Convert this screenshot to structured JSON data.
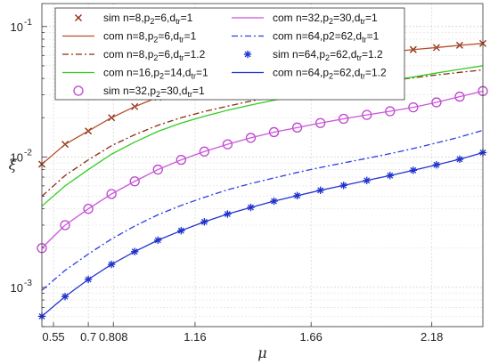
{
  "chart_data": {
    "type": "line",
    "xlabel": "μ",
    "ylabel": "ξ",
    "y_scale": "log",
    "xlim": [
      0.5,
      2.4
    ],
    "ylim": [
      0.0005,
      0.15
    ],
    "grid": true,
    "legend_position": "top",
    "legend_columns": 2,
    "x_ticks": [
      {
        "value": 0.55,
        "label": "0.55"
      },
      {
        "value": 0.7,
        "label": "0.7"
      },
      {
        "value": 0.808,
        "label": "0.808"
      },
      {
        "value": 1.16,
        "label": "1.16"
      },
      {
        "value": 1.66,
        "label": "1.66"
      },
      {
        "value": 2.18,
        "label": "2.18"
      }
    ],
    "y_ticks": [
      {
        "value": 0.001,
        "base": "10",
        "exp": "-3"
      },
      {
        "value": 0.01,
        "base": "10",
        "exp": "-2"
      },
      {
        "value": 0.1,
        "base": "10",
        "exp": "-1"
      }
    ],
    "series": [
      {
        "id": "sim-8",
        "legend_text": "sim n=8,p",
        "legend_parts": [
          [
            "sim n=8,p",
            ""
          ],
          [
            "2",
            "sub"
          ],
          [
            "=6,d",
            ""
          ],
          [
            "tr",
            "sub"
          ],
          [
            "=1",
            ""
          ]
        ],
        "kind": "markers",
        "marker": "x",
        "color": "#8b2c12",
        "x": [
          0.5,
          0.6,
          0.7,
          0.8,
          0.9,
          1.0,
          1.1,
          1.2,
          1.3,
          1.4,
          1.5,
          1.6,
          1.7,
          1.8,
          1.9,
          2.0,
          2.1,
          2.2,
          2.3,
          2.4
        ],
        "y": [
          0.0088,
          0.0125,
          0.0158,
          0.02,
          0.0243,
          0.0287,
          0.033,
          0.0373,
          0.0413,
          0.0448,
          0.0485,
          0.052,
          0.055,
          0.058,
          0.061,
          0.064,
          0.0665,
          0.069,
          0.0718,
          0.0742
        ]
      },
      {
        "id": "com-8-1",
        "legend_parts": [
          [
            "com n=8,p",
            ""
          ],
          [
            "2",
            "sub"
          ],
          [
            "=6,d",
            ""
          ],
          [
            "tr",
            "sub"
          ],
          [
            "=1",
            ""
          ]
        ],
        "kind": "line",
        "dash": "",
        "color": "#b4502c",
        "x": [
          0.5,
          0.6,
          0.7,
          0.8,
          0.9,
          1.0,
          1.1,
          1.2,
          1.3,
          1.4,
          1.5,
          1.6,
          1.7,
          1.8,
          1.9,
          2.0,
          2.1,
          2.2,
          2.3,
          2.4
        ],
        "y": [
          0.0088,
          0.0125,
          0.0158,
          0.02,
          0.0243,
          0.0287,
          0.033,
          0.0373,
          0.0413,
          0.0448,
          0.0485,
          0.052,
          0.055,
          0.058,
          0.061,
          0.064,
          0.0665,
          0.069,
          0.0718,
          0.0742
        ]
      },
      {
        "id": "com-8-1.2",
        "legend_parts": [
          [
            "com n=8,p",
            ""
          ],
          [
            "2",
            "sub"
          ],
          [
            "=6,d",
            ""
          ],
          [
            "tr",
            "sub"
          ],
          [
            "=1.2",
            ""
          ]
        ],
        "kind": "line",
        "dash": "7,3,2,3",
        "color": "#8b2c12",
        "x": [
          0.5,
          0.6,
          0.7,
          0.8,
          0.9,
          1.0,
          1.1,
          1.2,
          1.3,
          1.4,
          1.5,
          1.6,
          1.7,
          1.8,
          1.9,
          2.0,
          2.1,
          2.2,
          2.3,
          2.4
        ],
        "y": [
          0.005,
          0.0072,
          0.0095,
          0.0122,
          0.0148,
          0.0175,
          0.02,
          0.0223,
          0.0245,
          0.0268,
          0.029,
          0.031,
          0.033,
          0.035,
          0.0368,
          0.0385,
          0.0405,
          0.0425,
          0.0445,
          0.0465
        ]
      },
      {
        "id": "com-16",
        "legend_parts": [
          [
            "com n=16,p",
            ""
          ],
          [
            "2",
            "sub"
          ],
          [
            "=14,d",
            ""
          ],
          [
            "tr",
            "sub"
          ],
          [
            "=1",
            ""
          ]
        ],
        "kind": "line",
        "dash": "",
        "color": "#33cc22",
        "x": [
          0.5,
          0.6,
          0.7,
          0.8,
          0.9,
          1.0,
          1.1,
          1.2,
          1.3,
          1.4,
          1.5,
          1.6,
          1.7,
          1.8,
          1.9,
          2.0,
          2.1,
          2.2,
          2.3,
          2.4
        ],
        "y": [
          0.0042,
          0.006,
          0.008,
          0.0105,
          0.013,
          0.0157,
          0.0182,
          0.0205,
          0.0228,
          0.025,
          0.0272,
          0.0295,
          0.0318,
          0.034,
          0.0362,
          0.0385,
          0.041,
          0.044,
          0.047,
          0.05
        ]
      },
      {
        "id": "sim-32",
        "legend_parts": [
          [
            "sim n=32,p",
            ""
          ],
          [
            "2",
            "sub"
          ],
          [
            "=30,d",
            ""
          ],
          [
            "tr",
            "sub"
          ],
          [
            "=1",
            ""
          ]
        ],
        "kind": "markers",
        "marker": "o",
        "color": "#bb44cc",
        "x": [
          0.5,
          0.6,
          0.7,
          0.8,
          0.9,
          1.0,
          1.1,
          1.2,
          1.3,
          1.4,
          1.5,
          1.6,
          1.7,
          1.8,
          1.9,
          2.0,
          2.1,
          2.2,
          2.3,
          2.4
        ],
        "y": [
          0.002,
          0.003,
          0.004,
          0.0052,
          0.0065,
          0.008,
          0.0095,
          0.011,
          0.0125,
          0.014,
          0.0155,
          0.0168,
          0.0182,
          0.0196,
          0.021,
          0.0224,
          0.024,
          0.0262,
          0.029,
          0.032
        ]
      },
      {
        "id": "com-32",
        "legend_parts": [
          [
            "com n=32,p",
            ""
          ],
          [
            "2",
            "sub"
          ],
          [
            "=30,d",
            ""
          ],
          [
            "tr",
            "sub"
          ],
          [
            "=1",
            ""
          ]
        ],
        "kind": "line",
        "dash": "",
        "color": "#cc55dd",
        "x": [
          0.5,
          0.6,
          0.7,
          0.8,
          0.9,
          1.0,
          1.1,
          1.2,
          1.3,
          1.4,
          1.5,
          1.6,
          1.7,
          1.8,
          1.9,
          2.0,
          2.1,
          2.2,
          2.3,
          2.4
        ],
        "y": [
          0.002,
          0.003,
          0.004,
          0.0052,
          0.0065,
          0.008,
          0.0095,
          0.011,
          0.0125,
          0.014,
          0.0155,
          0.0168,
          0.0182,
          0.0196,
          0.021,
          0.0224,
          0.024,
          0.0262,
          0.029,
          0.032
        ]
      },
      {
        "id": "com-64-1",
        "legend_parts": [
          [
            "com n=64,p2=62,d",
            ""
          ],
          [
            "tr",
            "sub"
          ],
          [
            "=1",
            ""
          ]
        ],
        "kind": "line",
        "dash": "7,3,2,3",
        "color": "#2a3fe0",
        "x": [
          0.5,
          0.6,
          0.7,
          0.8,
          0.9,
          1.0,
          1.1,
          1.2,
          1.3,
          1.4,
          1.5,
          1.6,
          1.7,
          1.8,
          1.9,
          2.0,
          2.1,
          2.2,
          2.3,
          2.4
        ],
        "y": [
          0.00095,
          0.00135,
          0.0018,
          0.00235,
          0.00295,
          0.0036,
          0.00425,
          0.0049,
          0.0056,
          0.00625,
          0.0069,
          0.0076,
          0.0083,
          0.009,
          0.00975,
          0.0106,
          0.0116,
          0.0128,
          0.0142,
          0.016
        ]
      },
      {
        "id": "sim-64",
        "legend_parts": [
          [
            "sim n=64,p",
            ""
          ],
          [
            "2",
            "sub"
          ],
          [
            "=62,d",
            ""
          ],
          [
            "tr",
            "sub"
          ],
          [
            "=1.2",
            ""
          ]
        ],
        "kind": "markers",
        "marker": "*",
        "color": "#1a2fd0",
        "x": [
          0.5,
          0.6,
          0.7,
          0.8,
          0.9,
          1.0,
          1.1,
          1.2,
          1.3,
          1.4,
          1.5,
          1.6,
          1.7,
          1.8,
          1.9,
          2.0,
          2.1,
          2.2,
          2.3,
          2.4
        ],
        "y": [
          0.0006,
          0.00085,
          0.00115,
          0.0015,
          0.00188,
          0.0023,
          0.00272,
          0.00318,
          0.00365,
          0.0041,
          0.00458,
          0.00505,
          0.00555,
          0.00605,
          0.0066,
          0.0072,
          0.0079,
          0.0087,
          0.0096,
          0.0108
        ]
      },
      {
        "id": "com-64-1.2",
        "legend_parts": [
          [
            "com n=64,p",
            ""
          ],
          [
            "2",
            "sub"
          ],
          [
            "=62,d",
            ""
          ],
          [
            "tr",
            "sub"
          ],
          [
            "=1.2",
            ""
          ]
        ],
        "kind": "line",
        "dash": "",
        "color": "#2233cc",
        "x": [
          0.5,
          0.6,
          0.7,
          0.8,
          0.9,
          1.0,
          1.1,
          1.2,
          1.3,
          1.4,
          1.5,
          1.6,
          1.7,
          1.8,
          1.9,
          2.0,
          2.1,
          2.2,
          2.3,
          2.4
        ],
        "y": [
          0.0006,
          0.00085,
          0.00115,
          0.0015,
          0.00188,
          0.0023,
          0.00272,
          0.00318,
          0.00365,
          0.0041,
          0.00458,
          0.00505,
          0.00555,
          0.00605,
          0.0066,
          0.0072,
          0.0079,
          0.0087,
          0.0096,
          0.0108
        ]
      }
    ],
    "legend_order": [
      "sim-8",
      "com-32",
      "com-8-1",
      "com-64-1",
      "com-8-1.2",
      "sim-64",
      "com-16",
      "com-64-1.2",
      "sim-32"
    ]
  }
}
